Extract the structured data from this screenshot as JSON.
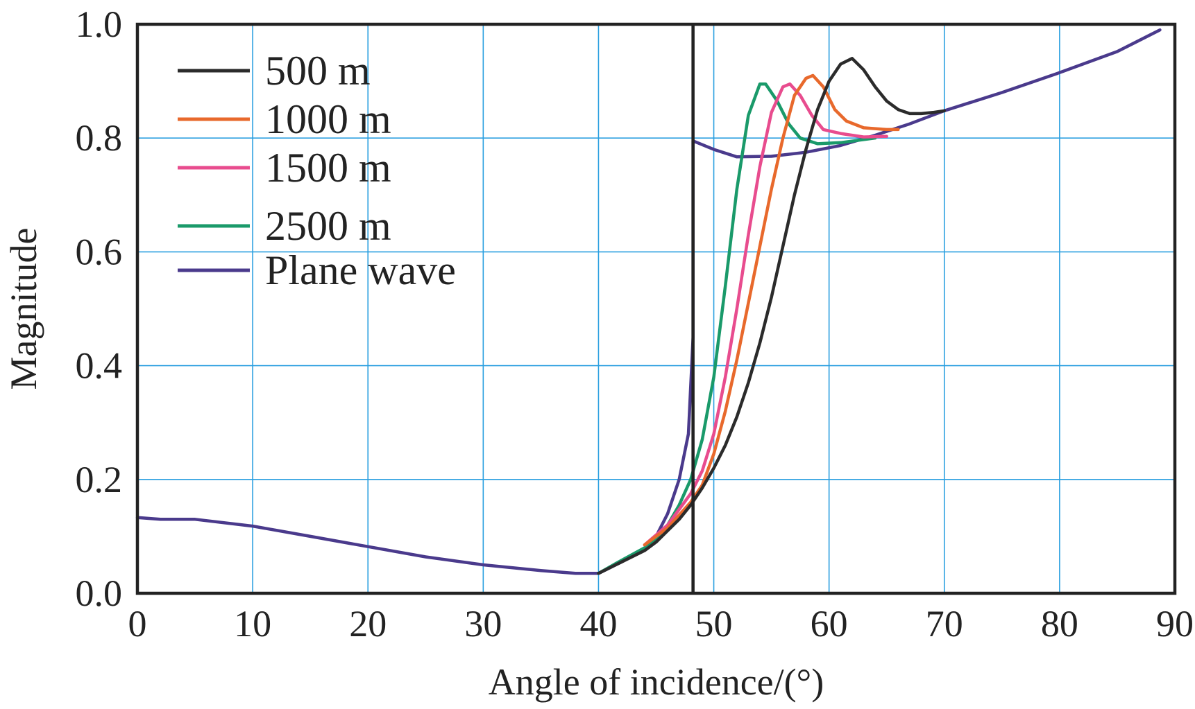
{
  "chart_data": {
    "type": "line",
    "title": "",
    "xlabel": "Angle of incidence/(°)",
    "ylabel": "Magnitude",
    "xlim": [
      0,
      90
    ],
    "ylim": [
      0.0,
      1.0
    ],
    "xticks": [
      0,
      10,
      20,
      30,
      40,
      50,
      60,
      70,
      80,
      90
    ],
    "xtick_labels": [
      "0",
      "10",
      "20",
      "30",
      "40",
      "50",
      "60",
      "70",
      "80",
      "90"
    ],
    "yticks": [
      0.0,
      0.2,
      0.4,
      0.6,
      0.8,
      1.0
    ],
    "ytick_labels": [
      "0.0",
      "0.2",
      "0.4",
      "0.6",
      "0.8",
      "1.0"
    ],
    "grid": true,
    "legend_position": "top-left",
    "vertical_marker_x": 48.2,
    "series": [
      {
        "name": "500 m",
        "color": "#2b2b2b",
        "points": [
          [
            40,
            0.035
          ],
          [
            42,
            0.055
          ],
          [
            44,
            0.075
          ],
          [
            45,
            0.09
          ],
          [
            46,
            0.11
          ],
          [
            47,
            0.13
          ],
          [
            48,
            0.155
          ],
          [
            49,
            0.185
          ],
          [
            50,
            0.22
          ],
          [
            51,
            0.26
          ],
          [
            52,
            0.31
          ],
          [
            53,
            0.37
          ],
          [
            54,
            0.44
          ],
          [
            55,
            0.52
          ],
          [
            56,
            0.61
          ],
          [
            57,
            0.7
          ],
          [
            58,
            0.78
          ],
          [
            59,
            0.85
          ],
          [
            60,
            0.9
          ],
          [
            61,
            0.93
          ],
          [
            62,
            0.94
          ],
          [
            63,
            0.92
          ],
          [
            64,
            0.89
          ],
          [
            65,
            0.865
          ],
          [
            66,
            0.85
          ],
          [
            67,
            0.843
          ],
          [
            68,
            0.843
          ],
          [
            69,
            0.845
          ],
          [
            70,
            0.848
          ]
        ]
      },
      {
        "name": "1000 m",
        "color": "#e8692c",
        "points": [
          [
            44,
            0.085
          ],
          [
            46,
            0.115
          ],
          [
            48,
            0.16
          ],
          [
            49,
            0.19
          ],
          [
            50,
            0.245
          ],
          [
            51,
            0.32
          ],
          [
            52,
            0.41
          ],
          [
            53,
            0.51
          ],
          [
            54,
            0.61
          ],
          [
            55,
            0.71
          ],
          [
            56,
            0.8
          ],
          [
            57,
            0.875
          ],
          [
            58,
            0.905
          ],
          [
            58.6,
            0.91
          ],
          [
            59.5,
            0.89
          ],
          [
            60.5,
            0.85
          ],
          [
            61.5,
            0.83
          ],
          [
            63,
            0.818
          ],
          [
            65,
            0.815
          ],
          [
            66,
            0.815
          ]
        ]
      },
      {
        "name": "1500 m",
        "color": "#e84c8e",
        "points": [
          [
            44,
            0.085
          ],
          [
            46,
            0.12
          ],
          [
            48,
            0.175
          ],
          [
            49,
            0.215
          ],
          [
            50,
            0.28
          ],
          [
            51,
            0.38
          ],
          [
            52,
            0.5
          ],
          [
            53,
            0.63
          ],
          [
            54,
            0.75
          ],
          [
            55,
            0.845
          ],
          [
            56,
            0.89
          ],
          [
            56.6,
            0.895
          ],
          [
            57.5,
            0.875
          ],
          [
            58.5,
            0.84
          ],
          [
            59.5,
            0.815
          ],
          [
            61,
            0.808
          ],
          [
            63,
            0.802
          ],
          [
            65,
            0.803
          ]
        ]
      },
      {
        "name": "2500 m",
        "color": "#1a9a6a",
        "points": [
          [
            40,
            0.035
          ],
          [
            42,
            0.058
          ],
          [
            44,
            0.08
          ],
          [
            45,
            0.095
          ],
          [
            46,
            0.12
          ],
          [
            47,
            0.155
          ],
          [
            48,
            0.2
          ],
          [
            49,
            0.27
          ],
          [
            50,
            0.38
          ],
          [
            51,
            0.54
          ],
          [
            52,
            0.71
          ],
          [
            53,
            0.84
          ],
          [
            54,
            0.895
          ],
          [
            54.5,
            0.895
          ],
          [
            55.5,
            0.865
          ],
          [
            56.5,
            0.825
          ],
          [
            57.5,
            0.8
          ],
          [
            59,
            0.79
          ],
          [
            61,
            0.792
          ],
          [
            64,
            0.8
          ]
        ]
      },
      {
        "name": "Plane wave",
        "color": "#4a3a8c",
        "points": [
          [
            0,
            0.133
          ],
          [
            2,
            0.13
          ],
          [
            5,
            0.13
          ],
          [
            10,
            0.118
          ],
          [
            15,
            0.1
          ],
          [
            20,
            0.082
          ],
          [
            25,
            0.064
          ],
          [
            30,
            0.05
          ],
          [
            35,
            0.04
          ],
          [
            38,
            0.035
          ],
          [
            40,
            0.035
          ],
          [
            42,
            0.055
          ],
          [
            44,
            0.078
          ],
          [
            45,
            0.1
          ],
          [
            46,
            0.14
          ],
          [
            47,
            0.2
          ],
          [
            47.8,
            0.28
          ],
          [
            48.2,
            0.45
          ],
          [
            48.2,
            0.795
          ],
          [
            50,
            0.78
          ],
          [
            52,
            0.767
          ],
          [
            55,
            0.768
          ],
          [
            58,
            0.775
          ],
          [
            61,
            0.787
          ],
          [
            64,
            0.805
          ],
          [
            67,
            0.825
          ],
          [
            70,
            0.848
          ],
          [
            75,
            0.88
          ],
          [
            80,
            0.915
          ],
          [
            85,
            0.952
          ],
          [
            88.7,
            0.99
          ]
        ]
      }
    ]
  }
}
